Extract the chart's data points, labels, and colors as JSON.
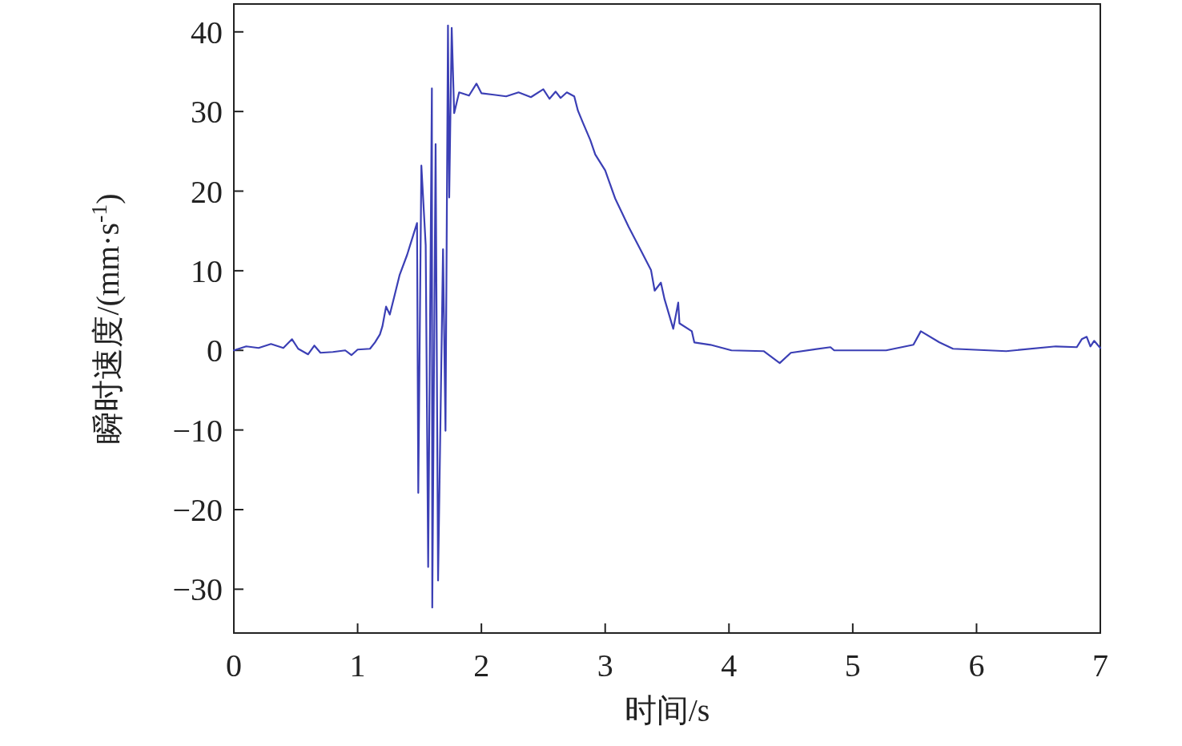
{
  "chart_data": {
    "type": "line",
    "xlabel": "时间/s",
    "ylabel": "瞬时速度/(mm·s$^{-1}$)",
    "xlim": [
      0,
      7
    ],
    "ylim": [
      -35.5,
      43.5
    ],
    "xticks": [
      0,
      1,
      2,
      3,
      4,
      5,
      6,
      7
    ],
    "yticks": [
      -30,
      -20,
      -10,
      0,
      10,
      20,
      30,
      40
    ],
    "marker": "none",
    "line_style": "solid",
    "series": [
      {
        "color": "#3b3fb5",
        "x": [
          0,
          0.1,
          0.2,
          0.3,
          0.4,
          0.47,
          0.52,
          0.6,
          0.65,
          0.7,
          0.8,
          0.9,
          0.95,
          1.0,
          1.1,
          1.14,
          1.18,
          1.2,
          1.23,
          1.26,
          1.3,
          1.34,
          1.4,
          1.45,
          1.48,
          1.49,
          1.515,
          1.55,
          1.57,
          1.6,
          1.603,
          1.63,
          1.65,
          1.69,
          1.71,
          1.73,
          1.74,
          1.76,
          1.78,
          1.82,
          1.9,
          1.96,
          2.0,
          2.1,
          2.2,
          2.3,
          2.4,
          2.5,
          2.55,
          2.6,
          2.64,
          2.69,
          2.75,
          2.78,
          2.82,
          2.88,
          2.92,
          3.0,
          3.08,
          3.19,
          3.29,
          3.37,
          3.4,
          3.45,
          3.48,
          3.55,
          3.59,
          3.6,
          3.7,
          3.72,
          3.85,
          4.02,
          4.28,
          4.41,
          4.5,
          4.82,
          4.85,
          5.27,
          5.49,
          5.55,
          5.7,
          5.81,
          6.24,
          6.64,
          6.81,
          6.85,
          6.89,
          6.92,
          6.95,
          7.0
        ],
        "values": [
          0,
          0.5,
          0.3,
          0.8,
          0.3,
          1.4,
          0.2,
          -0.5,
          0.6,
          -0.3,
          -0.2,
          0,
          -0.6,
          0.1,
          0.2,
          1,
          2,
          3,
          5.5,
          4.5,
          7,
          9.5,
          12,
          14.5,
          16,
          -17.9,
          23.2,
          13.2,
          -27.2,
          32.9,
          -32.3,
          25.9,
          -28.9,
          12.7,
          -10.1,
          40.8,
          19.2,
          40.5,
          29.8,
          32.4,
          32,
          33.5,
          32.3,
          32.1,
          31.9,
          32.4,
          31.8,
          32.8,
          31.6,
          32.5,
          31.7,
          32.4,
          31.9,
          30.1,
          28.6,
          26.4,
          24.6,
          22.6,
          19.1,
          15.5,
          12.5,
          10.1,
          7.5,
          8.5,
          6.4,
          2.7,
          6,
          3.4,
          2.4,
          1,
          0.7,
          0,
          -0.1,
          -1.6,
          -0.3,
          0.4,
          0,
          0,
          0.7,
          2.4,
          1,
          0.2,
          -0.1,
          0.5,
          0.4,
          1.4,
          1.7,
          0.5,
          1.2,
          0.3
        ]
      }
    ]
  }
}
